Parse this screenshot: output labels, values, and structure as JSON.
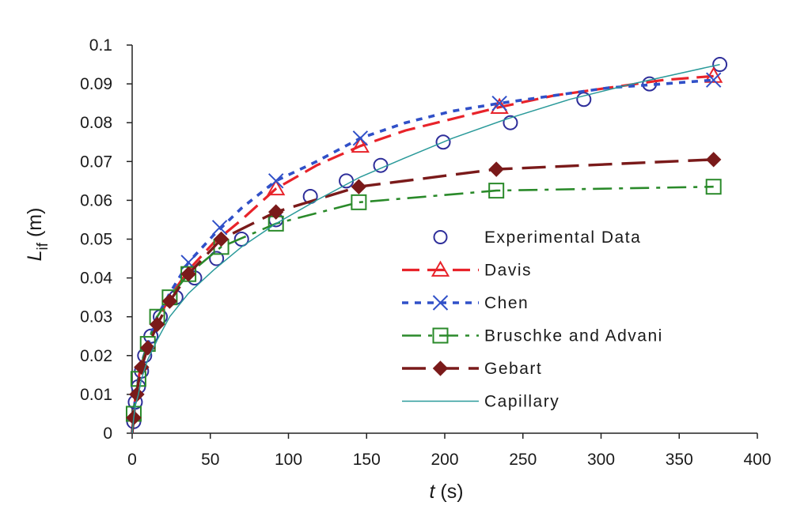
{
  "chart_data": {
    "type": "line",
    "title": "",
    "xlabel": {
      "var": "t",
      "unit": " (s)"
    },
    "ylabel": {
      "var": "L",
      "sub": "if",
      "unit": " (m)"
    },
    "xlim": [
      0,
      400
    ],
    "ylim": [
      0,
      0.1
    ],
    "x_ticks": [
      "0",
      "50",
      "100",
      "150",
      "200",
      "250",
      "300",
      "350",
      "400"
    ],
    "y_ticks": [
      "0",
      "0.01",
      "0.02",
      "0.03",
      "0.04",
      "0.05",
      "0.06",
      "0.07",
      "0.08",
      "0.09",
      "0.1"
    ],
    "grid": false,
    "legend_position": "right",
    "series": [
      {
        "name": "Experimental Data",
        "color": "#2e2e9a",
        "marker": "circle",
        "line": "none",
        "points": [
          [
            1,
            0.003
          ],
          [
            2,
            0.008
          ],
          [
            4,
            0.012
          ],
          [
            6,
            0.016
          ],
          [
            8,
            0.02
          ],
          [
            12,
            0.025
          ],
          [
            18,
            0.03
          ],
          [
            28,
            0.035
          ],
          [
            40,
            0.04
          ],
          [
            54,
            0.045
          ],
          [
            70,
            0.05
          ],
          [
            92,
            0.055
          ],
          [
            114,
            0.061
          ],
          [
            137,
            0.065
          ],
          [
            159,
            0.069
          ],
          [
            199,
            0.075
          ],
          [
            242,
            0.08
          ],
          [
            289,
            0.086
          ],
          [
            331,
            0.09
          ],
          [
            376,
            0.095
          ]
        ]
      },
      {
        "name": "Davis",
        "color": "#e8232a",
        "marker": "triangle",
        "line": "dash",
        "points": [
          [
            0,
            0
          ],
          [
            1,
            0.005
          ],
          [
            2,
            0.009
          ],
          [
            4,
            0.014
          ],
          [
            6,
            0.018
          ],
          [
            10,
            0.023
          ],
          [
            16,
            0.029
          ],
          [
            24,
            0.035
          ],
          [
            36,
            0.042
          ],
          [
            52,
            0.049
          ],
          [
            70,
            0.055
          ],
          [
            92,
            0.063
          ],
          [
            118,
            0.069
          ],
          [
            146,
            0.074
          ],
          [
            175,
            0.078
          ],
          [
            205,
            0.081
          ],
          [
            235,
            0.084
          ],
          [
            270,
            0.087
          ],
          [
            305,
            0.089
          ],
          [
            340,
            0.091
          ],
          [
            372,
            0.092
          ]
        ],
        "marker_points": [
          [
            92,
            0.063
          ],
          [
            146,
            0.074
          ],
          [
            235,
            0.084
          ],
          [
            372,
            0.092
          ]
        ]
      },
      {
        "name": "Chen",
        "color": "#3050c8",
        "marker": "x",
        "line": "dot",
        "points": [
          [
            0,
            0
          ],
          [
            1,
            0.005
          ],
          [
            2,
            0.009
          ],
          [
            4,
            0.014
          ],
          [
            6,
            0.018
          ],
          [
            10,
            0.023
          ],
          [
            16,
            0.03
          ],
          [
            24,
            0.036
          ],
          [
            36,
            0.044
          ],
          [
            52,
            0.051
          ],
          [
            70,
            0.058
          ],
          [
            92,
            0.065
          ],
          [
            118,
            0.07
          ],
          [
            146,
            0.076
          ],
          [
            175,
            0.08
          ],
          [
            205,
            0.083
          ],
          [
            235,
            0.085
          ],
          [
            270,
            0.087
          ],
          [
            305,
            0.089
          ],
          [
            340,
            0.09
          ],
          [
            372,
            0.091
          ]
        ],
        "marker_points": [
          [
            36,
            0.044
          ],
          [
            56,
            0.053
          ],
          [
            92,
            0.065
          ],
          [
            146,
            0.076
          ],
          [
            235,
            0.085
          ],
          [
            372,
            0.091
          ]
        ]
      },
      {
        "name": "Bruschke and Advani",
        "color": "#2a8a2a",
        "marker": "square",
        "line": "dashdot",
        "points": [
          [
            0,
            0
          ],
          [
            1,
            0.005
          ],
          [
            2,
            0.009
          ],
          [
            4,
            0.014
          ],
          [
            6,
            0.018
          ],
          [
            10,
            0.023
          ],
          [
            16,
            0.03
          ],
          [
            24,
            0.035
          ],
          [
            36,
            0.041
          ],
          [
            57,
            0.048
          ],
          [
            92,
            0.054
          ],
          [
            145,
            0.0595
          ],
          [
            233,
            0.0625
          ],
          [
            372,
            0.0635
          ]
        ],
        "marker_points": [
          [
            1,
            0.005
          ],
          [
            4,
            0.014
          ],
          [
            10,
            0.023
          ],
          [
            16,
            0.03
          ],
          [
            24,
            0.035
          ],
          [
            36,
            0.041
          ],
          [
            57,
            0.048
          ],
          [
            92,
            0.054
          ],
          [
            145,
            0.0595
          ],
          [
            233,
            0.0625
          ],
          [
            372,
            0.0635
          ]
        ]
      },
      {
        "name": "Gebart",
        "color": "#7a1a1a",
        "marker": "diamond",
        "line": "longdash",
        "points": [
          [
            0,
            0
          ],
          [
            1,
            0.004
          ],
          [
            2,
            0.008
          ],
          [
            4,
            0.013
          ],
          [
            6,
            0.017
          ],
          [
            10,
            0.022
          ],
          [
            16,
            0.028
          ],
          [
            24,
            0.034
          ],
          [
            36,
            0.041
          ],
          [
            57,
            0.05
          ],
          [
            92,
            0.057
          ],
          [
            145,
            0.0635
          ],
          [
            233,
            0.068
          ],
          [
            372,
            0.0705
          ]
        ],
        "marker_points": [
          [
            1,
            0.004
          ],
          [
            3,
            0.01
          ],
          [
            6,
            0.017
          ],
          [
            10,
            0.022
          ],
          [
            16,
            0.028
          ],
          [
            24,
            0.034
          ],
          [
            36,
            0.041
          ],
          [
            57,
            0.05
          ],
          [
            92,
            0.057
          ],
          [
            145,
            0.0635
          ],
          [
            233,
            0.068
          ],
          [
            372,
            0.0705
          ]
        ]
      },
      {
        "name": "Capillary",
        "color": "#2a9a9a",
        "marker": "none",
        "line": "solid",
        "points": [
          [
            0,
            0
          ],
          [
            1,
            0.004
          ],
          [
            2,
            0.007
          ],
          [
            4,
            0.01
          ],
          [
            6,
            0.014
          ],
          [
            10,
            0.019
          ],
          [
            16,
            0.024
          ],
          [
            24,
            0.03
          ],
          [
            36,
            0.036
          ],
          [
            52,
            0.042
          ],
          [
            70,
            0.048
          ],
          [
            92,
            0.054
          ],
          [
            118,
            0.06
          ],
          [
            146,
            0.066
          ],
          [
            175,
            0.071
          ],
          [
            205,
            0.076
          ],
          [
            240,
            0.081
          ],
          [
            280,
            0.086
          ],
          [
            320,
            0.09
          ],
          [
            376,
            0.095
          ]
        ]
      }
    ]
  }
}
